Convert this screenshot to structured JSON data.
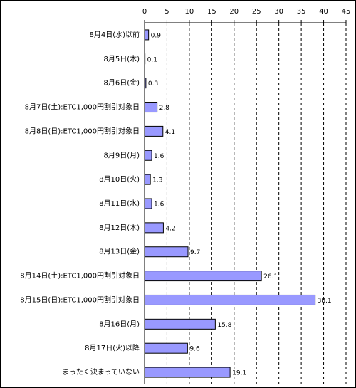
{
  "chart_data": {
    "type": "bar",
    "orientation": "horizontal",
    "categories": [
      "8月4日(水)以前",
      "8月5日(木)",
      "8月6日(金)",
      "8月7日(土):ETC1,000円割引対象日",
      "8月8日(日):ETC1,000円割引対象日",
      "8月9日(月)",
      "8月10日(火)",
      "8月11日(水)",
      "8月12日(木)",
      "8月13日(金)",
      "8月14日(土):ETC1,000円割引対象日",
      "8月15日(日):ETC1,000円割引対象日",
      "8月16日(月)",
      "8月17日(火)以降",
      "まったく決まっていない"
    ],
    "values": [
      0.9,
      0.1,
      0.3,
      2.8,
      4.1,
      1.6,
      1.3,
      1.6,
      4.2,
      9.7,
      26.1,
      38.1,
      15.8,
      9.6,
      19.1
    ],
    "color": "#9999ff",
    "xlim": [
      0,
      45
    ],
    "xticks": [
      0,
      5,
      10,
      15,
      20,
      25,
      30,
      35,
      40,
      45
    ],
    "grid": true
  }
}
